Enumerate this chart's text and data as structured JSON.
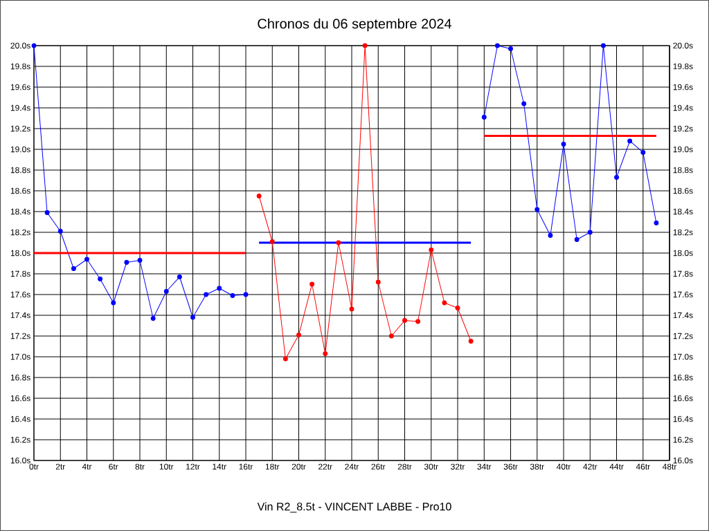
{
  "chart_data": {
    "type": "line",
    "title": "Chronos du 06 septembre 2024",
    "xlabel": "Vin R2_8.5t - VINCENT LABBE - Pro10",
    "grid": true,
    "marker": "circle",
    "line_style": "solid",
    "xlim": [
      0,
      48
    ],
    "xticks": [
      {
        "value": 0,
        "label": "0tr"
      },
      {
        "value": 2,
        "label": "2tr"
      },
      {
        "value": 4,
        "label": "4tr"
      },
      {
        "value": 6,
        "label": "6tr"
      },
      {
        "value": 8,
        "label": "8tr"
      },
      {
        "value": 10,
        "label": "10tr"
      },
      {
        "value": 12,
        "label": "12tr"
      },
      {
        "value": 14,
        "label": "14tr"
      },
      {
        "value": 16,
        "label": "16tr"
      },
      {
        "value": 18,
        "label": "18tr"
      },
      {
        "value": 20,
        "label": "20tr"
      },
      {
        "value": 22,
        "label": "22tr"
      },
      {
        "value": 24,
        "label": "24tr"
      },
      {
        "value": 26,
        "label": "26tr"
      },
      {
        "value": 28,
        "label": "28tr"
      },
      {
        "value": 30,
        "label": "30tr"
      },
      {
        "value": 32,
        "label": "32tr"
      },
      {
        "value": 34,
        "label": "34tr"
      },
      {
        "value": 36,
        "label": "36tr"
      },
      {
        "value": 38,
        "label": "38tr"
      },
      {
        "value": 40,
        "label": "40tr"
      },
      {
        "value": 42,
        "label": "42tr"
      },
      {
        "value": 44,
        "label": "44tr"
      },
      {
        "value": 46,
        "label": "46tr"
      },
      {
        "value": 48,
        "label": "48tr"
      }
    ],
    "ylim": [
      16,
      20
    ],
    "yticks": [
      {
        "value": 16,
        "label": "16.0s"
      },
      {
        "value": 16.2,
        "label": "16.2s"
      },
      {
        "value": 16.4,
        "label": "16.4s"
      },
      {
        "value": 16.6,
        "label": "16.6s"
      },
      {
        "value": 16.8,
        "label": "16.8s"
      },
      {
        "value": 17,
        "label": "17.0s"
      },
      {
        "value": 17.2,
        "label": "17.2s"
      },
      {
        "value": 17.4,
        "label": "17.4s"
      },
      {
        "value": 17.6,
        "label": "17.6s"
      },
      {
        "value": 17.8,
        "label": "17.8s"
      },
      {
        "value": 18,
        "label": "18.0s"
      },
      {
        "value": 18.2,
        "label": "18.2s"
      },
      {
        "value": 18.4,
        "label": "18.4s"
      },
      {
        "value": 18.6,
        "label": "18.6s"
      },
      {
        "value": 18.8,
        "label": "18.8s"
      },
      {
        "value": 19,
        "label": "19.0s"
      },
      {
        "value": 19.2,
        "label": "19.2s"
      },
      {
        "value": 19.4,
        "label": "19.4s"
      },
      {
        "value": 19.6,
        "label": "19.6s"
      },
      {
        "value": 19.8,
        "label": "19.8s"
      },
      {
        "value": 20,
        "label": "20.0s"
      }
    ],
    "y2lim": [
      16,
      20
    ],
    "y2ticks": [
      {
        "value": 16,
        "label": "16.0s"
      },
      {
        "value": 16.2,
        "label": "16.2s"
      },
      {
        "value": 16.4,
        "label": "16.4s"
      },
      {
        "value": 16.6,
        "label": "16.6s"
      },
      {
        "value": 16.8,
        "label": "16.8s"
      },
      {
        "value": 17,
        "label": "17.0s"
      },
      {
        "value": 17.2,
        "label": "17.2s"
      },
      {
        "value": 17.4,
        "label": "17.4s"
      },
      {
        "value": 17.6,
        "label": "17.6s"
      },
      {
        "value": 17.8,
        "label": "17.8s"
      },
      {
        "value": 18,
        "label": "18.0s"
      },
      {
        "value": 18.2,
        "label": "18.2s"
      },
      {
        "value": 18.4,
        "label": "18.4s"
      },
      {
        "value": 18.6,
        "label": "18.6s"
      },
      {
        "value": 18.8,
        "label": "18.8s"
      },
      {
        "value": 19,
        "label": "19.0s"
      },
      {
        "value": 19.2,
        "label": "19.2s"
      },
      {
        "value": 19.4,
        "label": "19.4s"
      },
      {
        "value": 19.6,
        "label": "19.6s"
      },
      {
        "value": 19.8,
        "label": "19.8s"
      },
      {
        "value": 20,
        "label": "20.0s"
      }
    ],
    "series": [
      {
        "color": "#0000ff",
        "x": [
          0,
          1,
          2,
          3,
          4,
          5,
          6,
          7,
          8,
          9,
          10,
          11,
          12,
          13,
          14,
          15,
          16
        ],
        "values": [
          20.0,
          18.39,
          18.21,
          17.85,
          17.94,
          17.75,
          17.52,
          17.91,
          17.93,
          17.37,
          17.63,
          17.77,
          17.38,
          17.6,
          17.66,
          17.59,
          17.6
        ]
      },
      {
        "color": "#ff0000",
        "x": [
          17,
          18,
          19,
          20,
          21,
          22,
          23,
          24,
          25,
          26,
          27,
          28,
          29,
          30,
          31,
          32,
          33
        ],
        "values": [
          18.55,
          18.11,
          16.98,
          17.21,
          17.7,
          17.03,
          18.1,
          17.46,
          20.0,
          17.72,
          17.2,
          17.35,
          17.34,
          18.03,
          17.52,
          17.47,
          17.15
        ]
      },
      {
        "color": "#0000ff",
        "x": [
          34,
          35,
          36,
          37,
          38,
          39,
          40,
          41,
          42,
          43,
          44,
          45,
          46,
          47
        ],
        "values": [
          19.31,
          20.0,
          19.97,
          19.44,
          18.42,
          18.17,
          19.05,
          18.13,
          18.2,
          20.0,
          18.73,
          19.08,
          18.97,
          18.29
        ]
      },
      {
        "color": "#ff0000",
        "marker": "none",
        "x": [
          0,
          16
        ],
        "values": [
          18.0,
          18.0
        ]
      },
      {
        "color": "#0000ff",
        "marker": "none",
        "x": [
          17,
          33
        ],
        "values": [
          18.1,
          18.1
        ]
      },
      {
        "color": "#ff0000",
        "marker": "none",
        "x": [
          34,
          47
        ],
        "values": [
          19.13,
          19.13
        ]
      }
    ]
  }
}
